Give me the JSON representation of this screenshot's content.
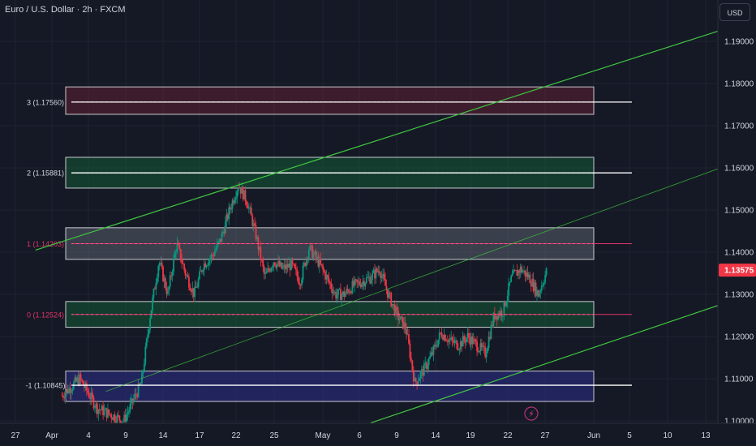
{
  "header": {
    "title": "Euro / U.S. Dollar · 2h · FXCM",
    "currency": "USD"
  },
  "colors": {
    "background": "#151925",
    "grid": "#1f2433",
    "bull": "#089981",
    "bear": "#f23645",
    "channel": "#3fc63f",
    "price_tag": "#f23645"
  },
  "chart_data": {
    "type": "candlestick",
    "symbol": "EURUSD",
    "timeframe": "2h",
    "ylim": [
      1.0995,
      1.1965
    ],
    "y_ticks": [
      "1.19000",
      "1.18000",
      "1.17000",
      "1.16000",
      "1.15000",
      "1.14000",
      "1.13000",
      "1.12000",
      "1.11000",
      "1.10000"
    ],
    "x_ticks": [
      "27",
      "Apr",
      "4",
      "9",
      "14",
      "17",
      "22",
      "25",
      "May",
      "6",
      "9",
      "14",
      "19",
      "22",
      "27",
      "Jun",
      "5",
      "10",
      "13"
    ],
    "last_price": "1.13575",
    "levels": [
      {
        "label": "3 (1.17560)",
        "value": 1.1756,
        "style": "white",
        "zone": [
          1.1727,
          1.1792
        ],
        "zone_color": "maroon"
      },
      {
        "label": "2 (1.15881)",
        "value": 1.15881,
        "style": "white",
        "zone": [
          1.1552,
          1.1625
        ],
        "zone_color": "green"
      },
      {
        "label": "1 (1.14203)",
        "value": 1.14203,
        "style": "red",
        "zone": [
          1.1383,
          1.1458
        ],
        "zone_color": "gray"
      },
      {
        "label": "0 (1.12524)",
        "value": 1.12524,
        "style": "red",
        "zone": [
          1.1222,
          1.1283
        ],
        "zone_color": "green"
      },
      {
        "label": "-1 (1.10845)",
        "value": 1.10845,
        "style": "white",
        "zone": [
          1.1046,
          1.1118
        ],
        "zone_color": "blue"
      }
    ],
    "price_path": [
      [
        "Apr 1",
        1.106
      ],
      [
        "Apr 3",
        1.11
      ],
      [
        "Apr 5",
        1.103
      ],
      [
        "Apr 8",
        1.1
      ],
      [
        "Apr 10",
        1.109
      ],
      [
        "Apr 11",
        1.125
      ],
      [
        "Apr 12",
        1.138
      ],
      [
        "Apr 13",
        1.13
      ],
      [
        "Apr 14",
        1.142
      ],
      [
        "Apr 15",
        1.135
      ],
      [
        "Apr 16",
        1.13
      ],
      [
        "Apr 17",
        1.137
      ],
      [
        "Apr 18",
        1.139
      ],
      [
        "Apr 19",
        1.143
      ],
      [
        "Apr 20",
        1.15
      ],
      [
        "Apr 21",
        1.156
      ],
      [
        "Apr 22",
        1.152
      ],
      [
        "Apr 23",
        1.144
      ],
      [
        "Apr 24",
        1.134
      ],
      [
        "Apr 25",
        1.138
      ],
      [
        "Apr 26",
        1.136
      ],
      [
        "Apr 27",
        1.137
      ],
      [
        "Apr 28",
        1.133
      ],
      [
        "Apr 29",
        1.141
      ],
      [
        "Apr 30",
        1.138
      ],
      [
        "May 1",
        1.134
      ],
      [
        "May 2",
        1.13
      ],
      [
        "May 3",
        1.13
      ],
      [
        "May 4",
        1.132
      ],
      [
        "May 5",
        1.133
      ],
      [
        "May 6",
        1.134
      ],
      [
        "May 7",
        1.136
      ],
      [
        "May 8",
        1.13
      ],
      [
        "May 9",
        1.125
      ],
      [
        "May 10",
        1.122
      ],
      [
        "May 11",
        1.109
      ],
      [
        "May 12",
        1.112
      ],
      [
        "May 13",
        1.116
      ],
      [
        "May 14",
        1.121
      ],
      [
        "May 15",
        1.119
      ],
      [
        "May 16",
        1.118
      ],
      [
        "May 17",
        1.12
      ],
      [
        "May 18",
        1.118
      ],
      [
        "May 19",
        1.116
      ],
      [
        "May 20",
        1.125
      ],
      [
        "May 21",
        1.126
      ],
      [
        "May 22",
        1.134
      ],
      [
        "May 23",
        1.136
      ],
      [
        "May 24",
        1.134
      ],
      [
        "May 25",
        1.13
      ],
      [
        "May 26",
        1.13575
      ]
    ],
    "channel_lines": [
      {
        "from": [
          "Mar 29",
          1.1405
        ],
        "to": [
          "Jun 16",
          1.1935
        ],
        "style": "solid"
      },
      {
        "from": [
          "Apr 6",
          1.107
        ],
        "to": [
          "Jun 16",
          1.161
        ],
        "style": "thin"
      },
      {
        "from": [
          "May 6",
          1.0995
        ],
        "to": [
          "Jun 16",
          1.1285
        ],
        "style": "solid"
      }
    ]
  }
}
